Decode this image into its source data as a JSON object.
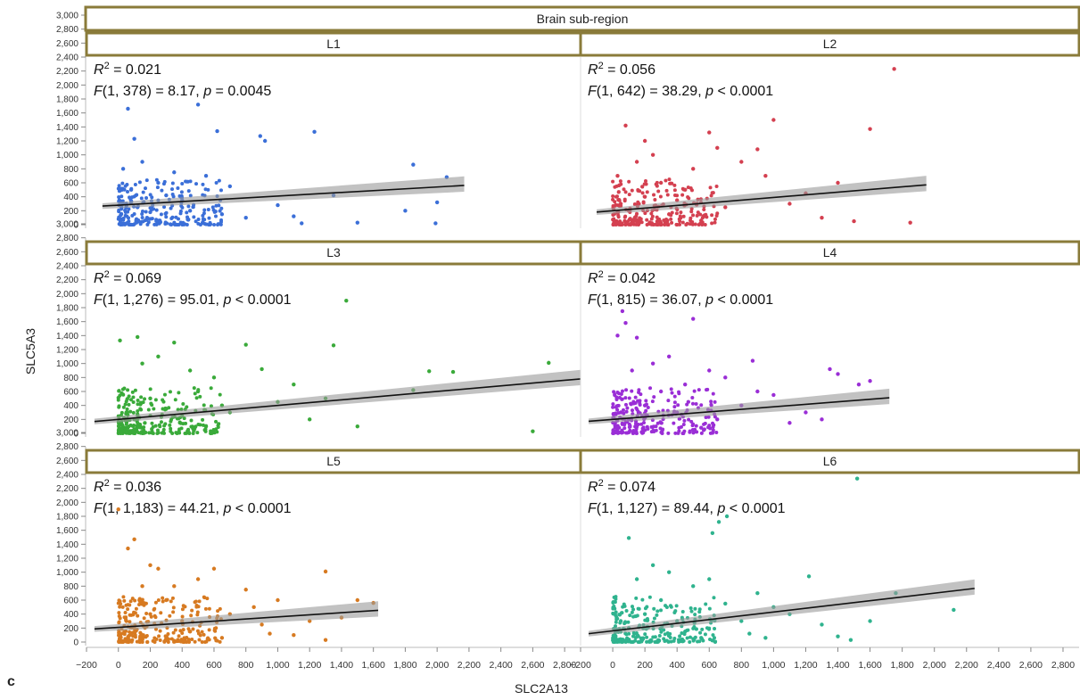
{
  "figure": {
    "panel_letter": "c",
    "header_title": "Brain sub-region",
    "ylabel": "SLC5A3",
    "xlabel": "SLC2A13"
  },
  "chart_data": {
    "type": "scatter",
    "title": "",
    "xlabel": "SLC2A13",
    "ylabel": "SLC5A3",
    "xlim": [
      -200,
      2900
    ],
    "ylim": [
      -100,
      3000
    ],
    "x_ticks": [
      -200,
      0,
      200,
      400,
      600,
      800,
      1000,
      1200,
      1400,
      1600,
      1800,
      2000,
      2200,
      2400,
      2600,
      2800
    ],
    "x_tick_labels": [
      "−200",
      "0",
      "200",
      "400",
      "600",
      "800",
      "1,000",
      "1,200",
      "1,400",
      "1,600",
      "1,800",
      "2,000",
      "2,200",
      "2,400",
      "2,600",
      "2,800"
    ],
    "y_ticks": [
      0,
      200,
      400,
      600,
      800,
      1000,
      1200,
      1400,
      1600,
      1800,
      2000,
      2200,
      2400,
      2600,
      2800,
      3000
    ],
    "y_tick_labels": [
      "0",
      "200",
      "400",
      "600",
      "800",
      "1,000",
      "1,200",
      "1,400",
      "1,600",
      "1,800",
      "2,000",
      "2,200",
      "2,400",
      "2,600",
      "2,800",
      "3,000"
    ],
    "panels": [
      {
        "name": "L1",
        "color": "#3b6fd8",
        "r2": "0.021",
        "f_df": "1, 378",
        "f_val": "8.17",
        "p_op": "=",
        "p_val": "0.0045",
        "fit": {
          "intercept": 280,
          "slope": 0.13,
          "x_range": [
            -100,
            2170
          ]
        },
        "points": [
          [
            50,
            300
          ],
          [
            120,
            250
          ],
          [
            200,
            180
          ],
          [
            300,
            420
          ],
          [
            400,
            350
          ],
          [
            550,
            700
          ],
          [
            60,
            1660
          ],
          [
            500,
            1720
          ],
          [
            620,
            1340
          ],
          [
            1230,
            1330
          ],
          [
            890,
            1270
          ],
          [
            920,
            1200
          ],
          [
            1850,
            860
          ],
          [
            2060,
            680
          ],
          [
            2000,
            320
          ],
          [
            1990,
            20
          ],
          [
            1500,
            30
          ],
          [
            1350,
            420
          ],
          [
            1150,
            20
          ],
          [
            800,
            100
          ],
          [
            700,
            550
          ],
          [
            1000,
            280
          ],
          [
            100,
            1230
          ],
          [
            150,
            900
          ],
          [
            250,
            600
          ],
          [
            350,
            750
          ],
          [
            30,
            800
          ],
          [
            80,
            500
          ],
          [
            180,
            100
          ],
          [
            260,
            60
          ],
          [
            450,
            200
          ],
          [
            650,
            150
          ],
          [
            1100,
            120
          ],
          [
            1800,
            200
          ]
        ]
      },
      {
        "name": "L2",
        "color": "#d44050",
        "r2": "0.056",
        "f_df": "1, 642",
        "f_val": "38.29",
        "p_op": "<",
        "p_val": "0.0001",
        "fit": {
          "intercept": 200,
          "slope": 0.19,
          "x_range": [
            -100,
            1950
          ]
        },
        "points": [
          [
            50,
            300
          ],
          [
            100,
            200
          ],
          [
            200,
            400
          ],
          [
            300,
            600
          ],
          [
            400,
            350
          ],
          [
            80,
            1420
          ],
          [
            200,
            1200
          ],
          [
            1000,
            1500
          ],
          [
            1600,
            1370
          ],
          [
            1750,
            2230
          ],
          [
            1850,
            30
          ],
          [
            1400,
            600
          ],
          [
            1200,
            450
          ],
          [
            1100,
            300
          ],
          [
            900,
            1080
          ],
          [
            600,
            1320
          ],
          [
            800,
            900
          ],
          [
            500,
            800
          ],
          [
            700,
            250
          ],
          [
            1300,
            100
          ],
          [
            1500,
            50
          ],
          [
            950,
            700
          ],
          [
            150,
            900
          ],
          [
            250,
            1000
          ],
          [
            350,
            150
          ],
          [
            450,
            500
          ],
          [
            650,
            1100
          ],
          [
            30,
            700
          ],
          [
            120,
            50
          ],
          [
            550,
            60
          ]
        ]
      },
      {
        "name": "L3",
        "color": "#3aaa3a",
        "r2": "0.069",
        "f_df": "1, 1,276",
        "f_val": "95.01",
        "p_op": "<",
        "p_val": "0.0001",
        "fit": {
          "intercept": 200,
          "slope": 0.2,
          "x_range": [
            -150,
            2900
          ]
        },
        "points": [
          [
            50,
            300
          ],
          [
            100,
            200
          ],
          [
            200,
            500
          ],
          [
            300,
            350
          ],
          [
            400,
            250
          ],
          [
            500,
            600
          ],
          [
            10,
            1330
          ],
          [
            120,
            1380
          ],
          [
            350,
            1300
          ],
          [
            1430,
            1900
          ],
          [
            1350,
            1260
          ],
          [
            2700,
            1010
          ],
          [
            2100,
            880
          ],
          [
            1950,
            890
          ],
          [
            1850,
            620
          ],
          [
            2600,
            30
          ],
          [
            900,
            920
          ],
          [
            1100,
            700
          ],
          [
            1300,
            500
          ],
          [
            800,
            1270
          ],
          [
            700,
            300
          ],
          [
            1000,
            450
          ],
          [
            1200,
            200
          ],
          [
            600,
            800
          ],
          [
            150,
            1000
          ],
          [
            250,
            1100
          ],
          [
            450,
            900
          ],
          [
            1500,
            100
          ],
          [
            30,
            50
          ],
          [
            550,
            100
          ],
          [
            650,
            400
          ]
        ]
      },
      {
        "name": "L4",
        "color": "#9a2ed6",
        "r2": "0.042",
        "f_df": "1, 815",
        "f_val": "36.07",
        "p_op": "<",
        "p_val": "0.0001",
        "fit": {
          "intercept": 200,
          "slope": 0.18,
          "x_range": [
            -150,
            1720
          ]
        },
        "points": [
          [
            50,
            300
          ],
          [
            100,
            200
          ],
          [
            200,
            400
          ],
          [
            300,
            600
          ],
          [
            400,
            300
          ],
          [
            60,
            1750
          ],
          [
            80,
            1580
          ],
          [
            30,
            1400
          ],
          [
            150,
            1370
          ],
          [
            500,
            1640
          ],
          [
            870,
            1040
          ],
          [
            1350,
            920
          ],
          [
            1400,
            850
          ],
          [
            1530,
            700
          ],
          [
            1600,
            750
          ],
          [
            1000,
            550
          ],
          [
            700,
            800
          ],
          [
            600,
            900
          ],
          [
            800,
            400
          ],
          [
            1200,
            300
          ],
          [
            1100,
            150
          ],
          [
            900,
            600
          ],
          [
            250,
            1000
          ],
          [
            350,
            1100
          ],
          [
            450,
            700
          ],
          [
            120,
            900
          ],
          [
            1300,
            200
          ],
          [
            550,
            80
          ],
          [
            650,
            200
          ]
        ]
      },
      {
        "name": "L5",
        "color": "#d77a21",
        "r2": "0.036",
        "f_df": "1, 1,183",
        "f_val": "44.21",
        "p_op": "<",
        "p_val": "0.0001",
        "fit": {
          "intercept": 210,
          "slope": 0.15,
          "x_range": [
            -150,
            1630
          ]
        },
        "points": [
          [
            50,
            300
          ],
          [
            100,
            200
          ],
          [
            200,
            400
          ],
          [
            300,
            600
          ],
          [
            400,
            300
          ],
          [
            0,
            1900
          ],
          [
            100,
            1470
          ],
          [
            60,
            1340
          ],
          [
            200,
            1100
          ],
          [
            600,
            1050
          ],
          [
            1300,
            1010
          ],
          [
            1500,
            600
          ],
          [
            1600,
            560
          ],
          [
            1400,
            350
          ],
          [
            1200,
            300
          ],
          [
            1000,
            600
          ],
          [
            900,
            250
          ],
          [
            800,
            750
          ],
          [
            700,
            400
          ],
          [
            500,
            900
          ],
          [
            350,
            800
          ],
          [
            250,
            1050
          ],
          [
            1100,
            100
          ],
          [
            1300,
            30
          ],
          [
            150,
            800
          ],
          [
            450,
            150
          ],
          [
            650,
            60
          ],
          [
            850,
            500
          ],
          [
            950,
            120
          ]
        ]
      },
      {
        "name": "L6",
        "color": "#2fb38e",
        "r2": "0.074",
        "f_df": "1, 1,127",
        "f_val": "89.44",
        "p_op": "<",
        "p_val": "0.0001",
        "fit": {
          "intercept": 160,
          "slope": 0.27,
          "x_range": [
            -150,
            2250
          ]
        },
        "points": [
          [
            50,
            300
          ],
          [
            100,
            200
          ],
          [
            200,
            400
          ],
          [
            300,
            600
          ],
          [
            400,
            300
          ],
          [
            1520,
            2340
          ],
          [
            710,
            1800
          ],
          [
            660,
            1720
          ],
          [
            620,
            1560
          ],
          [
            100,
            1490
          ],
          [
            1220,
            940
          ],
          [
            1760,
            700
          ],
          [
            2120,
            460
          ],
          [
            1480,
            30
          ],
          [
            1400,
            80
          ],
          [
            1000,
            500
          ],
          [
            1100,
            400
          ],
          [
            900,
            700
          ],
          [
            800,
            300
          ],
          [
            700,
            550
          ],
          [
            600,
            900
          ],
          [
            500,
            800
          ],
          [
            350,
            1000
          ],
          [
            250,
            1100
          ],
          [
            150,
            900
          ],
          [
            1300,
            250
          ],
          [
            1600,
            300
          ],
          [
            450,
            150
          ],
          [
            550,
            60
          ],
          [
            850,
            120
          ],
          [
            950,
            60
          ]
        ]
      }
    ]
  }
}
